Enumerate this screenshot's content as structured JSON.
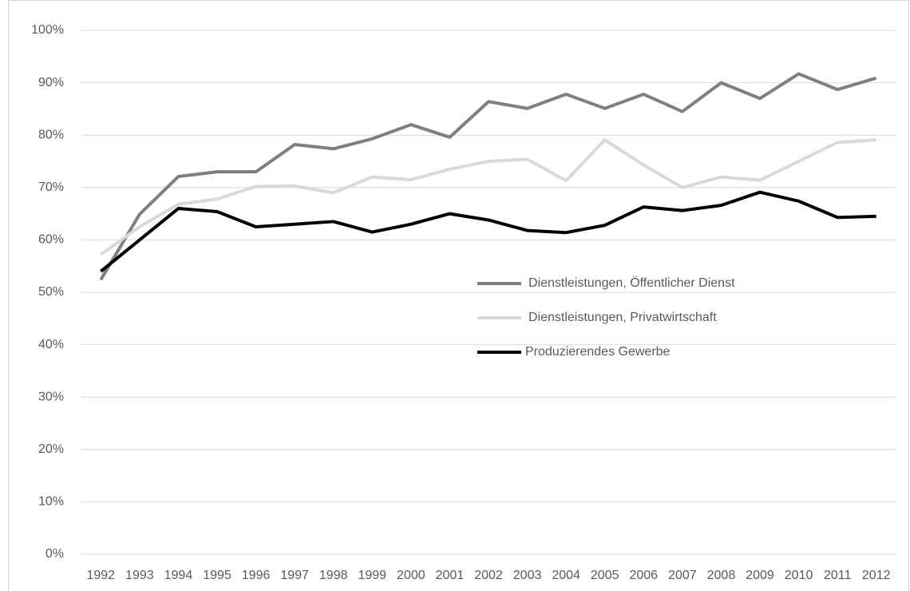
{
  "chart_data": {
    "type": "line",
    "categories": [
      "1992",
      "1993",
      "1994",
      "1995",
      "1996",
      "1997",
      "1998",
      "1999",
      "2000",
      "2001",
      "2002",
      "2003",
      "2004",
      "2005",
      "2006",
      "2007",
      "2008",
      "2009",
      "2010",
      "2011",
      "2012"
    ],
    "series": [
      {
        "name": "Dienstleistungen, Öffentlicher Dienst",
        "color": "#7f7f7f",
        "values": [
          52.4,
          64.9,
          72.1,
          73,
          73,
          78.2,
          77.4,
          79.3,
          82,
          79.6,
          86.4,
          85.1,
          87.8,
          85.1,
          87.8,
          84.5,
          90,
          87,
          91.7,
          88.7,
          90.9
        ]
      },
      {
        "name": "Dienstleistungen, Privatwirtschaft",
        "color": "#d9d9d9",
        "values": [
          57.2,
          62.5,
          66.8,
          67.8,
          70.2,
          70.3,
          69,
          72,
          71.5,
          73.5,
          75,
          75.4,
          71.3,
          79.1,
          74.3,
          70,
          72,
          71.4,
          75,
          78.6,
          79.1
        ]
      },
      {
        "name": "Produzierendes Gewerbe",
        "color": "#000000",
        "values": [
          54,
          60,
          66,
          65.4,
          62.5,
          63,
          63.5,
          61.5,
          63,
          65,
          63.8,
          61.8,
          61.4,
          62.8,
          66.3,
          65.6,
          66.6,
          69.1,
          67.4,
          64.3,
          64.5
        ]
      }
    ],
    "ylim": [
      0,
      100
    ],
    "yticks": [
      {
        "value": 0,
        "label": "0%"
      },
      {
        "value": 10,
        "label": "10%"
      },
      {
        "value": 20,
        "label": "20%"
      },
      {
        "value": 30,
        "label": "30%"
      },
      {
        "value": 40,
        "label": "40%"
      },
      {
        "value": 50,
        "label": "50%"
      },
      {
        "value": 60,
        "label": "60%"
      },
      {
        "value": 70,
        "label": "70%"
      },
      {
        "value": 80,
        "label": "80%"
      },
      {
        "value": 90,
        "label": "90%"
      },
      {
        "value": 100,
        "label": "100%"
      }
    ],
    "grid": true,
    "legend": "center"
  }
}
